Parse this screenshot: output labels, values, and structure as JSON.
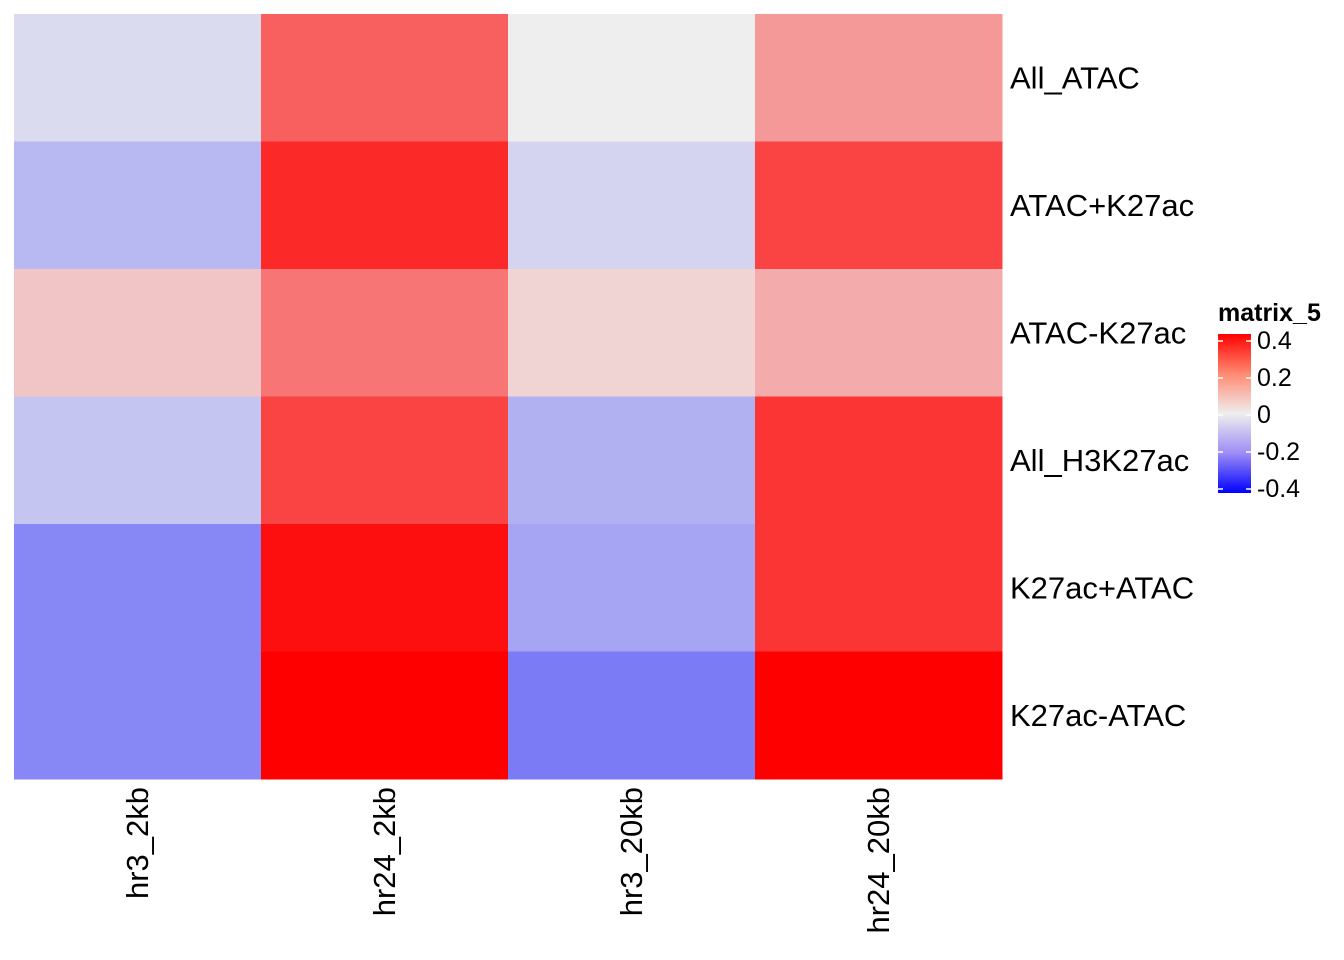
{
  "chart_data": {
    "type": "heatmap",
    "rows": [
      "All_ATAC",
      "ATAC+K27ac",
      "ATAC-K27ac",
      "All_H3K27ac",
      "K27ac+ATAC",
      "K27ac-ATAC"
    ],
    "columns": [
      "hr3_2kb",
      "hr24_2kb",
      "hr3_20kb",
      "hr24_20kb"
    ],
    "values": [
      [
        -0.02,
        0.22,
        0.0,
        0.12
      ],
      [
        -0.07,
        0.32,
        -0.03,
        0.27
      ],
      [
        0.05,
        0.18,
        0.03,
        0.09
      ],
      [
        -0.05,
        0.27,
        -0.08,
        0.3
      ],
      [
        -0.15,
        0.37,
        -0.1,
        0.3
      ],
      [
        -0.15,
        0.45,
        -0.17,
        0.45
      ]
    ],
    "legend": {
      "title": "matrix_5",
      "ticks": [
        0.4,
        0.2,
        0,
        -0.2,
        -0.4
      ],
      "tick_labels": [
        "0.4",
        "0.2",
        "0",
        "-0.2",
        "-0.4"
      ],
      "range": [
        -0.4,
        0.4
      ],
      "placement": "right"
    },
    "colors": {
      "low": "#0000FF",
      "mid": "#EEEEEE",
      "high": "#FF0000"
    }
  }
}
